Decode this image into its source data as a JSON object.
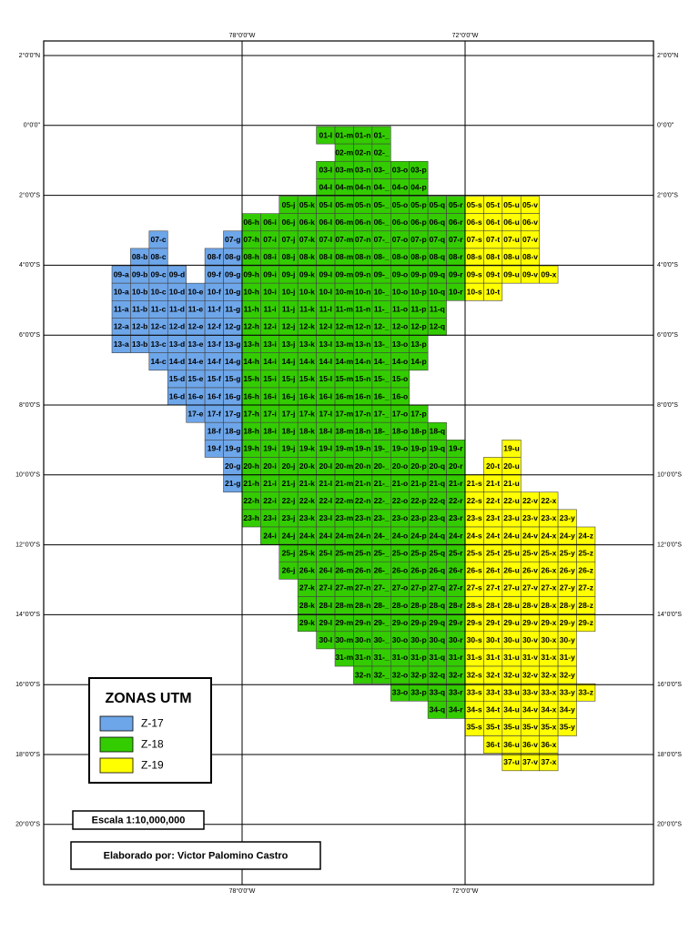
{
  "map": {
    "lat_labels": [
      "2°0'0\"N",
      "0°0'0\"",
      "2°0'0\"S",
      "4°0'0\"S",
      "6°0'0\"S",
      "8°0'0\"S",
      "10°0'0\"S",
      "12°0'0\"S",
      "14°0'0\"S",
      "16°0'0\"S",
      "18°0'0\"S",
      "20°0'0\"S"
    ],
    "lon_labels": [
      "78°0'0\"W",
      "72°0'0\"W"
    ],
    "legend_title": "ZONAS UTM",
    "zones": [
      {
        "name": "Z-17",
        "color": "#6ea6ea",
        "cells": [
          "07-c",
          "07-g",
          "08-b",
          "08-c",
          "08-f",
          "08-g",
          "09-a",
          "09-b",
          "09-c",
          "09-d",
          "09-f",
          "09-g",
          "10-a",
          "10-b",
          "10-c",
          "10-d",
          "10-e",
          "10-f",
          "10-g",
          "11-a",
          "11-b",
          "11-c",
          "11-d",
          "11-e",
          "11-f",
          "11-g",
          "12-a",
          "12-b",
          "12-c",
          "12-d",
          "12-e",
          "12-f",
          "12-g",
          "13-a",
          "13-b",
          "13-c",
          "13-d",
          "13-e",
          "13-f",
          "13-g",
          "14-c",
          "14-d",
          "14-e",
          "14-f",
          "14-g",
          "15-d",
          "15-e",
          "15-f",
          "15-g",
          "16-d",
          "16-e",
          "16-f",
          "16-g",
          "17-e",
          "17-f",
          "17-g",
          "18-f",
          "18-g",
          "19-f",
          "19-g",
          "20-g",
          "21-g"
        ]
      },
      {
        "name": "Z-18",
        "color": "#33cc00",
        "cells": [
          "01-l",
          "01-m",
          "01-n",
          "01-_",
          "02-m",
          "02-n",
          "02-_",
          "03-l",
          "03-m",
          "03-n",
          "03-_",
          "03-o",
          "03-p",
          "04-l",
          "04-m",
          "04-n",
          "04-_",
          "04-o",
          "04-p",
          "05-j",
          "05-k",
          "05-l",
          "05-m",
          "05-n",
          "05-_",
          "05-o",
          "05-p",
          "05-q",
          "05-r",
          "06-h",
          "06-i",
          "06-j",
          "06-k",
          "06-l",
          "06-m",
          "06-n",
          "06-_",
          "06-o",
          "06-p",
          "06-q",
          "06-r",
          "07-h",
          "07-i",
          "07-j",
          "07-k",
          "07-l",
          "07-m",
          "07-n",
          "07-_",
          "07-o",
          "07-p",
          "07-q",
          "07-r",
          "08-h",
          "08-i",
          "08-j",
          "08-k",
          "08-l",
          "08-m",
          "08-n",
          "08-_",
          "08-o",
          "08-p",
          "08-q",
          "08-r",
          "09-h",
          "09-i",
          "09-j",
          "09-k",
          "09-l",
          "09-m",
          "09-n",
          "09-_",
          "09-o",
          "09-p",
          "09-q",
          "09-r",
          "10-h",
          "10-i",
          "10-j",
          "10-k",
          "10-l",
          "10-m",
          "10-n",
          "10-_",
          "10-o",
          "10-p",
          "10-q",
          "10-r",
          "11-h",
          "11-i",
          "11-j",
          "11-k",
          "11-l",
          "11-m",
          "11-n",
          "11-_",
          "11-o",
          "11-p",
          "11-q",
          "12-h",
          "12-i",
          "12-j",
          "12-k",
          "12-l",
          "12-m",
          "12-n",
          "12-_",
          "12-o",
          "12-p",
          "12-q",
          "13-h",
          "13-i",
          "13-j",
          "13-k",
          "13-l",
          "13-m",
          "13-n",
          "13-_",
          "13-o",
          "13-p",
          "14-h",
          "14-i",
          "14-j",
          "14-k",
          "14-l",
          "14-m",
          "14-n",
          "14-_",
          "14-o",
          "14-p",
          "15-h",
          "15-i",
          "15-j",
          "15-k",
          "15-l",
          "15-m",
          "15-n",
          "15-_",
          "15-o",
          "16-h",
          "16-i",
          "16-j",
          "16-k",
          "16-l",
          "16-m",
          "16-n",
          "16-_",
          "16-o",
          "17-h",
          "17-i",
          "17-j",
          "17-k",
          "17-l",
          "17-m",
          "17-n",
          "17-_",
          "17-o",
          "17-p",
          "18-h",
          "18-i",
          "18-j",
          "18-k",
          "18-l",
          "18-m",
          "18-n",
          "18-_",
          "18-o",
          "18-p",
          "18-q",
          "19-h",
          "19-i",
          "19-j",
          "19-k",
          "19-l",
          "19-m",
          "19-n",
          "19-_",
          "19-o",
          "19-p",
          "19-q",
          "19-r",
          "20-h",
          "20-i",
          "20-j",
          "20-k",
          "20-l",
          "20-m",
          "20-n",
          "20-_",
          "20-o",
          "20-p",
          "20-q",
          "20-r",
          "21-h",
          "21-i",
          "21-j",
          "21-k",
          "21-l",
          "21-m",
          "21-n",
          "21-_",
          "21-o",
          "21-p",
          "21-q",
          "21-r",
          "22-h",
          "22-i",
          "22-j",
          "22-k",
          "22-l",
          "22-m",
          "22-n",
          "22-_",
          "22-o",
          "22-p",
          "22-q",
          "22-r",
          "23-h",
          "23-i",
          "23-j",
          "23-k",
          "23-l",
          "23-m",
          "23-n",
          "23-_",
          "23-o",
          "23-p",
          "23-q",
          "23-r",
          "24-i",
          "24-j",
          "24-k",
          "24-l",
          "24-m",
          "24-n",
          "24-_",
          "24-o",
          "24-p",
          "24-q",
          "24-r",
          "25-j",
          "25-k",
          "25-l",
          "25-m",
          "25-n",
          "25-_",
          "25-o",
          "25-p",
          "25-q",
          "25-r",
          "26-j",
          "26-k",
          "26-l",
          "26-m",
          "26-n",
          "26-_",
          "26-o",
          "26-p",
          "26-q",
          "26-r",
          "27-k",
          "27-l",
          "27-m",
          "27-n",
          "27-_",
          "27-o",
          "27-p",
          "27-q",
          "27-r",
          "28-k",
          "28-l",
          "28-m",
          "28-n",
          "28-_",
          "28-o",
          "28-p",
          "28-q",
          "28-r",
          "29-k",
          "29-l",
          "29-m",
          "29-n",
          "29-_",
          "29-o",
          "29-p",
          "29-q",
          "29-r",
          "30-l",
          "30-m",
          "30-n",
          "30-_",
          "30-o",
          "30-p",
          "30-q",
          "30-r",
          "31-m",
          "31-n",
          "31-_",
          "31-o",
          "31-p",
          "31-q",
          "31-r",
          "32-n",
          "32-_",
          "32-o",
          "32-p",
          "32-q",
          "32-r",
          "33-o",
          "33-p",
          "33-q",
          "33-r",
          "34-q",
          "34-r"
        ]
      },
      {
        "name": "Z-19",
        "color": "#ffff00",
        "cells": [
          "05-s",
          "05-t",
          "05-u",
          "05-v",
          "06-s",
          "06-t",
          "06-u",
          "06-v",
          "07-s",
          "07-t",
          "07-u",
          "07-v",
          "08-s",
          "08-t",
          "08-u",
          "08-v",
          "09-s",
          "09-t",
          "09-u",
          "09-v",
          "09-x",
          "10-s",
          "10-t",
          "19-u",
          "20-t",
          "20-u",
          "21-s",
          "21-t",
          "21-u",
          "22-s",
          "22-t",
          "22-u",
          "22-v",
          "22-x",
          "23-s",
          "23-t",
          "23-u",
          "23-v",
          "23-x",
          "23-y",
          "24-s",
          "24-t",
          "24-u",
          "24-v",
          "24-x",
          "24-y",
          "24-z",
          "25-s",
          "25-t",
          "25-u",
          "25-v",
          "25-x",
          "25-y",
          "25-z",
          "26-s",
          "26-t",
          "26-u",
          "26-v",
          "26-x",
          "26-y",
          "26-z",
          "27-s",
          "27-t",
          "27-u",
          "27-v",
          "27-x",
          "27-y",
          "27-z",
          "28-s",
          "28-t",
          "28-u",
          "28-v",
          "28-x",
          "28-y",
          "28-z",
          "29-s",
          "29-t",
          "29-u",
          "29-v",
          "29-x",
          "29-y",
          "29-z",
          "30-s",
          "30-t",
          "30-u",
          "30-v",
          "30-x",
          "30-y",
          "31-s",
          "31-t",
          "31-u",
          "31-v",
          "31-x",
          "31-y",
          "32-s",
          "32-t",
          "32-u",
          "32-v",
          "32-x",
          "32-y",
          "33-s",
          "33-t",
          "33-u",
          "33-v",
          "33-x",
          "33-y",
          "33-z",
          "34-s",
          "34-t",
          "34-u",
          "34-v",
          "34-x",
          "34-y",
          "35-s",
          "35-t",
          "35-u",
          "35-v",
          "35-x",
          "35-y",
          "36-t",
          "36-u",
          "36-v",
          "36-x",
          "37-u",
          "37-v",
          "37-x"
        ]
      }
    ],
    "scale": "Escala 1:10,000,000",
    "author": "Elaborado por: Victor Palomino Castro"
  }
}
